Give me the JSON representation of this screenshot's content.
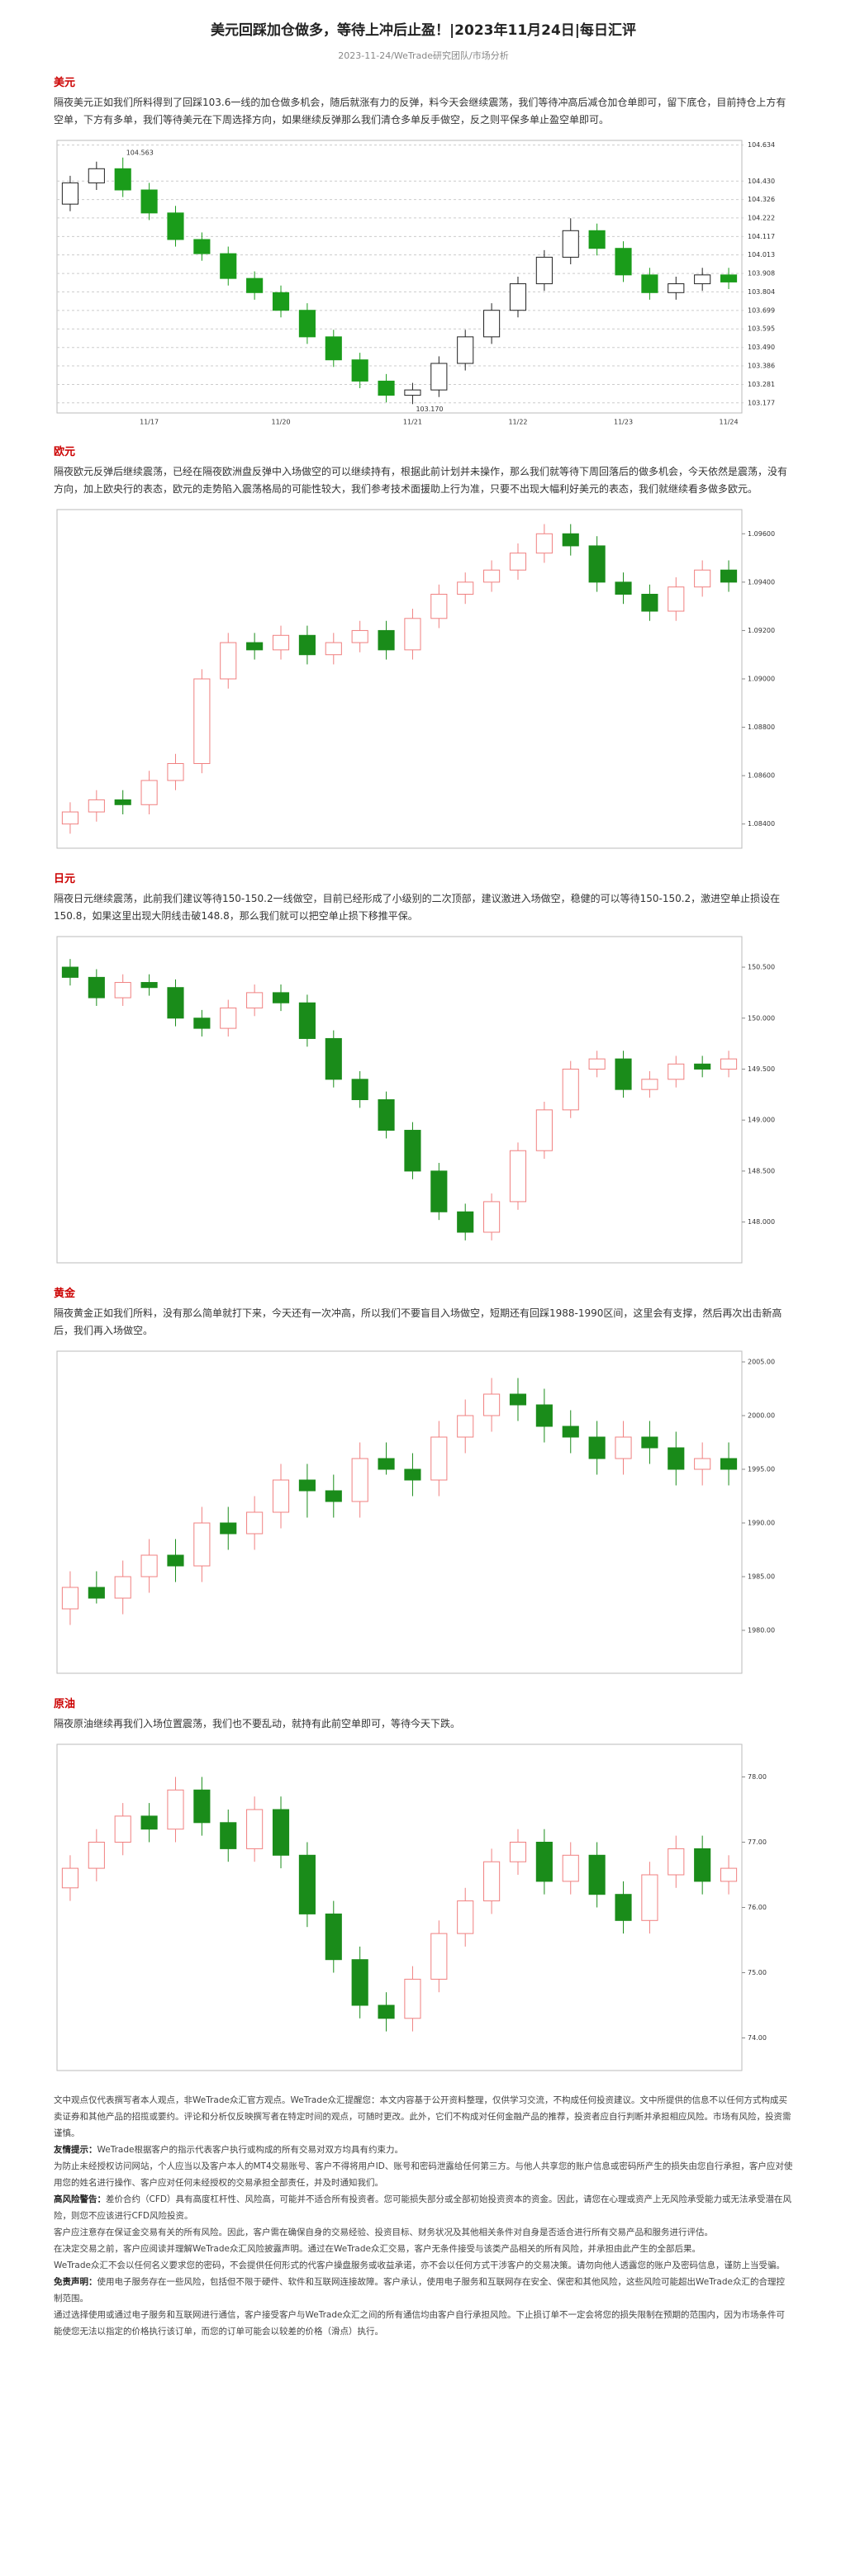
{
  "header": {
    "title": "美元回踩加仓做多，等待上冲后止盈！|2023年11月24日|每日汇评",
    "meta": "2023-11-24/WeTrade研究团队/市场分析"
  },
  "sections": [
    {
      "heading": "美元",
      "paragraph": "隔夜美元正如我们所料得到了回踩103.6一线的加仓做多机会，随后就涨有力的反弹，料今天会继续震荡，我们等待冲高后减仓加仓单即可，留下底仓，目前持仓上方有空单，下方有多单，我们等待美元在下周选择方向，如果继续反弹那么我们清仓多单反手做空，反之则平保多单止盈空单即可。"
    },
    {
      "heading": "欧元",
      "paragraph": "隔夜欧元反弹后继续震荡，已经在隔夜欧洲盘反弹中入场做空的可以继续持有，根据此前计划并未操作，那么我们就等待下周回落后的做多机会，今天依然是震荡，没有方向，加上欧央行的表态，欧元的走势陷入震荡格局的可能性较大，我们参考技术面援助上行为准，只要不出现大幅利好美元的表态，我们就继续看多做多欧元。"
    },
    {
      "heading": "日元",
      "paragraph": "隔夜日元继续震荡，此前我们建议等待150-150.2一线做空，目前已经形成了小级别的二次顶部，建议激进入场做空，稳健的可以等待150-150.2，激进空单止损设在150.8，如果这里出现大阴线击破148.8，那么我们就可以把空单止损下移推平保。"
    },
    {
      "heading": "黄金",
      "paragraph": "隔夜黄金正如我们所料，没有那么简单就打下来，今天还有一次冲高，所以我们不要盲目入场做空，短期还有回踩1988-1990区间，这里会有支撑，然后再次出击新高后，我们再入场做空。"
    },
    {
      "heading": "原油",
      "paragraph": "隔夜原油继续再我们入场位置震荡，我们也不要乱动，就持有此前空单即可，等待今天下跌。"
    }
  ],
  "chart_data": [
    {
      "type": "candlestick",
      "up_color": "#222222",
      "down_color": "#1a9c1a",
      "grid": true,
      "categories": [
        null,
        null,
        null,
        "11/17",
        null,
        null,
        null,
        null,
        "11/20",
        null,
        null,
        null,
        null,
        "11/21",
        null,
        null,
        null,
        "11/22",
        null,
        null,
        null,
        "11/23",
        null,
        null,
        null,
        "11/24"
      ],
      "open": [
        104.3,
        104.42,
        104.5,
        104.38,
        104.25,
        104.1,
        104.02,
        103.88,
        103.8,
        103.7,
        103.55,
        103.42,
        103.3,
        103.22,
        103.25,
        103.4,
        103.55,
        103.7,
        103.85,
        104.0,
        104.15,
        104.05,
        103.9,
        103.8,
        103.85,
        103.9
      ],
      "high": [
        104.46,
        104.54,
        104.563,
        104.42,
        104.29,
        104.14,
        104.06,
        103.92,
        103.84,
        103.74,
        103.59,
        103.46,
        103.34,
        103.29,
        103.44,
        103.59,
        103.74,
        103.89,
        104.04,
        104.22,
        104.19,
        104.09,
        103.94,
        103.89,
        103.94,
        103.94
      ],
      "low": [
        104.26,
        104.38,
        104.34,
        104.21,
        104.06,
        103.98,
        103.84,
        103.76,
        103.66,
        103.51,
        103.38,
        103.26,
        103.18,
        103.17,
        103.21,
        103.36,
        103.51,
        103.66,
        103.81,
        103.96,
        104.01,
        103.86,
        103.76,
        103.76,
        103.81,
        103.82
      ],
      "close": [
        104.42,
        104.5,
        104.38,
        104.25,
        104.1,
        104.02,
        103.88,
        103.8,
        103.7,
        103.55,
        103.42,
        103.3,
        103.22,
        103.25,
        103.4,
        103.55,
        103.7,
        103.85,
        104.0,
        104.15,
        104.05,
        103.9,
        103.8,
        103.85,
        103.9,
        103.86
      ],
      "annotations": [
        104.563,
        {
          "value": 103.17,
          "label": "103.170"
        }
      ],
      "ylim": [
        103.12,
        104.66
      ],
      "yticks": [
        104.634,
        {
          "value": 104.43,
          "label": "104.430"
        },
        104.326,
        104.222,
        104.117,
        104.013,
        103.908,
        103.804,
        103.699,
        103.595,
        {
          "value": 103.49,
          "label": "103.490"
        },
        103.386,
        103.281,
        103.177
      ]
    },
    {
      "type": "candlestick",
      "up_color": "#f08080",
      "down_color": "#1a8c1a",
      "grid": false,
      "open": [
        1.084,
        1.0845,
        1.085,
        1.0848,
        1.0858,
        1.0865,
        1.09,
        1.0915,
        1.0912,
        1.0918,
        1.091,
        1.0915,
        1.092,
        1.0912,
        1.0925,
        1.0935,
        1.094,
        1.0945,
        1.0952,
        1.096,
        1.0955,
        1.094,
        1.0935,
        1.0928,
        1.0938,
        1.0945
      ],
      "high": [
        1.0849,
        1.0854,
        1.0854,
        1.0862,
        1.0869,
        1.0904,
        1.0919,
        1.0919,
        1.0922,
        1.0922,
        1.0919,
        1.0924,
        1.0924,
        1.0929,
        1.0939,
        1.0944,
        1.0949,
        1.0956,
        1.0964,
        1.0964,
        1.0959,
        1.0944,
        1.0939,
        1.0942,
        1.0949,
        1.0949
      ],
      "low": [
        1.0836,
        1.0841,
        1.0844,
        1.0844,
        1.0854,
        1.0861,
        1.0896,
        1.0908,
        1.0908,
        1.0906,
        1.0906,
        1.0911,
        1.0908,
        1.0908,
        1.0921,
        1.0931,
        1.0936,
        1.0941,
        1.0948,
        1.0951,
        1.0936,
        1.0931,
        1.0924,
        1.0924,
        1.0934,
        1.0936
      ],
      "close": [
        1.0845,
        1.085,
        1.0848,
        1.0858,
        1.0865,
        1.09,
        1.0915,
        1.0912,
        1.0918,
        1.091,
        1.0915,
        1.092,
        1.0912,
        1.0925,
        1.0935,
        1.094,
        1.0945,
        1.0952,
        1.096,
        1.0955,
        1.094,
        1.0935,
        1.0928,
        1.0938,
        1.0945,
        1.094
      ],
      "ylim": [
        1.083,
        1.097
      ],
      "yticks": [
        {
          "value": 1.084,
          "label": "1.08400"
        },
        {
          "value": 1.086,
          "label": "1.08600"
        },
        {
          "value": 1.088,
          "label": "1.08800"
        },
        {
          "value": 1.09,
          "label": "1.09000"
        },
        {
          "value": 1.092,
          "label": "1.09200"
        },
        {
          "value": 1.094,
          "label": "1.09400"
        },
        {
          "value": 1.096,
          "label": "1.09600"
        }
      ]
    },
    {
      "type": "candlestick",
      "up_color": "#f08080",
      "down_color": "#1a8c1a",
      "grid": false,
      "open": [
        150.5,
        150.4,
        150.2,
        150.35,
        150.3,
        150.0,
        149.9,
        150.1,
        150.25,
        150.15,
        149.8,
        149.4,
        149.2,
        148.9,
        148.5,
        148.1,
        147.9,
        148.2,
        148.7,
        149.1,
        149.5,
        149.6,
        149.3,
        149.4,
        149.55,
        149.5
      ],
      "high": [
        150.58,
        150.48,
        150.43,
        150.43,
        150.38,
        150.08,
        150.18,
        150.33,
        150.33,
        150.23,
        149.88,
        149.48,
        149.28,
        148.98,
        148.58,
        148.18,
        148.28,
        148.78,
        149.18,
        149.58,
        149.68,
        149.68,
        149.48,
        149.63,
        149.63,
        149.68
      ],
      "low": [
        150.32,
        150.12,
        150.12,
        150.22,
        149.92,
        149.82,
        149.82,
        150.02,
        150.07,
        149.72,
        149.32,
        149.12,
        148.82,
        148.42,
        148.02,
        147.82,
        147.82,
        148.12,
        148.62,
        149.02,
        149.42,
        149.22,
        149.22,
        149.32,
        149.42,
        149.42
      ],
      "close": [
        150.4,
        150.2,
        150.35,
        150.3,
        150.0,
        149.9,
        150.1,
        150.25,
        150.15,
        149.8,
        149.4,
        149.2,
        148.9,
        148.5,
        148.1,
        147.9,
        148.2,
        148.7,
        149.1,
        149.5,
        149.6,
        149.3,
        149.4,
        149.55,
        149.5,
        149.6
      ],
      "ylim": [
        147.6,
        150.8
      ],
      "yticks": [
        {
          "value": 148,
          "label": "148.000"
        },
        {
          "value": 148.5,
          "label": "148.500"
        },
        {
          "value": 149,
          "label": "149.000"
        },
        {
          "value": 149.5,
          "label": "149.500"
        },
        {
          "value": 150,
          "label": "150.000"
        },
        {
          "value": 150.5,
          "label": "150.500"
        }
      ]
    },
    {
      "type": "candlestick",
      "up_color": "#f08080",
      "down_color": "#1a8c1a",
      "grid": false,
      "open": [
        1982,
        1984,
        1983,
        1985,
        1987,
        1986,
        1990,
        1989,
        1991,
        1994,
        1993,
        1992,
        1996,
        1995,
        1994,
        1998,
        2000,
        2002,
        2001,
        1999,
        1998,
        1996,
        1998,
        1997,
        1995,
        1996
      ],
      "high": [
        1985.5,
        1985.5,
        1986.5,
        1988.5,
        1988.5,
        1991.5,
        1991.5,
        1992.5,
        1995.5,
        1995.5,
        1994.5,
        1997.5,
        1997.5,
        1996.5,
        1999.5,
        2001.5,
        2003.5,
        2003.5,
        2002.5,
        2000.5,
        1999.5,
        1999.5,
        1999.5,
        1998.5,
        1997.5,
        1997.5
      ],
      "low": [
        1980.5,
        1982.5,
        1981.5,
        1983.5,
        1984.5,
        1984.5,
        1987.5,
        1987.5,
        1989.5,
        1990.5,
        1990.5,
        1990.5,
        1994.5,
        1992.5,
        1992.5,
        1996.5,
        1998.5,
        1999.5,
        1997.5,
        1996.5,
        1994.5,
        1994.5,
        1995.5,
        1993.5,
        1993.5,
        1993.5
      ],
      "close": [
        1984,
        1983,
        1985,
        1987,
        1986,
        1990,
        1989,
        1991,
        1994,
        1993,
        1992,
        1996,
        1995,
        1994,
        1998,
        2000,
        2002,
        2001,
        1999,
        1998,
        1996,
        1998,
        1997,
        1995,
        1996,
        1995
      ],
      "ylim": [
        1976,
        2006
      ],
      "yticks": [
        {
          "value": 1980,
          "label": "1980.00"
        },
        {
          "value": 1985,
          "label": "1985.00"
        },
        {
          "value": 1990,
          "label": "1990.00"
        },
        {
          "value": 1995,
          "label": "1995.00"
        },
        {
          "value": 2000,
          "label": "2000.00"
        },
        {
          "value": 2005,
          "label": "2005.00"
        }
      ]
    },
    {
      "type": "candlestick",
      "up_color": "#f08080",
      "down_color": "#1a8c1a",
      "grid": false,
      "open": [
        76.3,
        76.6,
        77.0,
        77.4,
        77.2,
        77.8,
        77.3,
        76.9,
        77.5,
        76.8,
        75.9,
        75.2,
        74.5,
        74.3,
        74.9,
        75.6,
        76.1,
        76.7,
        77.0,
        76.4,
        76.8,
        76.2,
        75.8,
        76.5,
        76.9,
        76.4
      ],
      "high": [
        76.8,
        77.2,
        77.6,
        77.6,
        78.0,
        78.0,
        77.5,
        77.7,
        77.7,
        77.0,
        76.1,
        75.4,
        74.7,
        75.1,
        75.8,
        76.3,
        76.9,
        77.2,
        77.2,
        77.0,
        77.0,
        76.4,
        76.7,
        77.1,
        77.1,
        76.8
      ],
      "low": [
        76.1,
        76.4,
        76.8,
        77.0,
        77.0,
        77.1,
        76.7,
        76.7,
        76.6,
        75.7,
        75.0,
        74.3,
        74.1,
        74.1,
        74.7,
        75.4,
        75.9,
        76.5,
        76.2,
        76.2,
        76.0,
        75.6,
        75.6,
        76.3,
        76.2,
        76.2
      ],
      "close": [
        76.6,
        77.0,
        77.4,
        77.2,
        77.8,
        77.3,
        76.9,
        77.5,
        76.8,
        75.9,
        75.2,
        74.5,
        74.3,
        74.9,
        75.6,
        76.1,
        76.7,
        77.0,
        76.4,
        76.8,
        76.2,
        75.8,
        76.5,
        76.9,
        76.4,
        76.6
      ],
      "ylim": [
        73.5,
        78.5
      ],
      "yticks": [
        {
          "value": 74,
          "label": "74.00"
        },
        {
          "value": 75,
          "label": "75.00"
        },
        {
          "value": 76,
          "label": "76.00"
        },
        {
          "value": 77,
          "label": "77.00"
        },
        {
          "value": 78,
          "label": "78.00"
        }
      ]
    }
  ],
  "disclaimer": [
    {
      "text": "文中观点仅代表撰写者本人观点，非WeTrade众汇官方观点。WeTrade众汇提醒您：本文内容基于公开资料整理，仅供学习交流，不构成任何投资建议。文中所提供的信息不以任何方式构成买卖证券和其他产品的招揽或要约。评论和分析仅反映撰写者在特定时间的观点，可随时更改。此外，它们不构成对任何金融产品的推荐，投资者应自行判断并承担相应风险。市场有风险，投资需谨慎。"
    },
    {
      "label": "友情提示：",
      "text": "WeTrade根据客户的指示代表客户执行或构成的所有交易对双方均具有约束力。"
    },
    {
      "text": "为防止未经授权访问网站，个人应当以及客户本人的MT4交易账号、客户不得将用户ID、账号和密码泄露给任何第三方。与他人共享您的账户信息或密码所产生的损失由您自行承担，客户应对使用您的姓名进行操作、客户应对任何未经授权的交易承担全部责任，并及时通知我们。"
    },
    {
      "label": "高风险警告：",
      "text": "差价合约（CFD）具有高度杠杆性、风险高，可能并不适合所有投资者。您可能损失部分或全部初始投资资本的资金。因此，请您在心理或资产上无风险承受能力或无法承受潜在风险，则您不应该进行CFD风险投资。"
    },
    {
      "text": "客户应注意存在保证金交易有关的所有风险。因此，客户需在确保自身的交易经验、投资目标、财务状况及其他相关条件对自身是否适合进行所有交易产品和服务进行评估。"
    },
    {
      "text": "在决定交易之前，客户应阅读并理解WeTrade众汇风险披露声明。通过在WeTrade众汇交易，客户无条件接受与该类产品相关的所有风险，并承担由此产生的全部后果。"
    },
    {
      "text": "WeTrade众汇不会以任何名义要求您的密码，不会提供任何形式的代客户操盘服务或收益承诺，亦不会以任何方式干涉客户的交易决策。请勿向他人透露您的账户及密码信息，谨防上当受骗。"
    },
    {
      "label": "免责声明：",
      "text": "使用电子服务存在一些风险，包括但不限于硬件、软件和互联网连接故障。客户承认，使用电子服务和互联网存在安全、保密和其他风险，这些风险可能超出WeTrade众汇的合理控制范围。"
    },
    {
      "text": "通过选择使用或通过电子服务和互联网进行通信，客户接受客户与WeTrade众汇之间的所有通信均由客户自行承担风险。下止损订单不一定会将您的损失限制在预期的范围内，因为市场条件可能使您无法以指定的价格执行该订单，而您的订单可能会以较差的价格（滑点）执行。"
    }
  ]
}
